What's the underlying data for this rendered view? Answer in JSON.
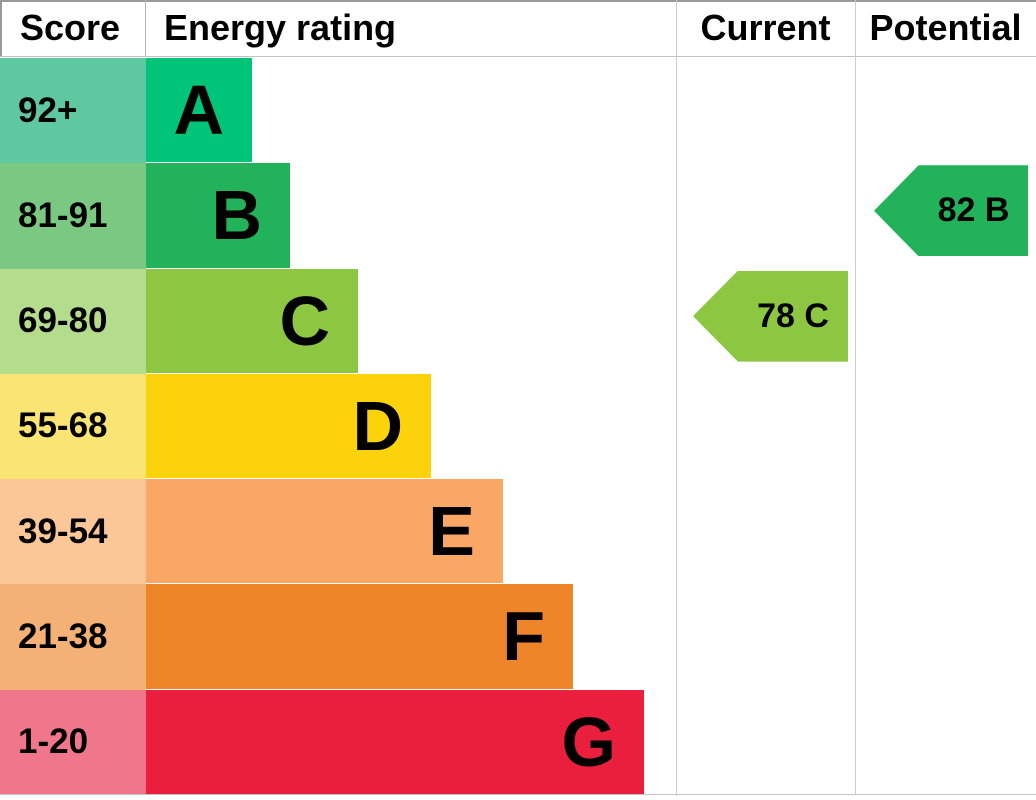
{
  "header": {
    "score": "Score",
    "energy_rating": "Energy rating",
    "current": "Current",
    "potential": "Potential"
  },
  "chart_data": {
    "type": "bar",
    "kind": "epc-energy-rating",
    "columns": [
      "Score",
      "Energy rating",
      "Current",
      "Potential"
    ],
    "bands": [
      {
        "letter": "A",
        "score_range": "92+",
        "bar_color": "#00c477",
        "score_tint_color": "#5fc8a1",
        "bar_width_frac": 0.2
      },
      {
        "letter": "B",
        "score_range": "81-91",
        "bar_color": "#22b259",
        "score_tint_color": "#7ac881",
        "bar_width_frac": 0.272
      },
      {
        "letter": "C",
        "score_range": "69-80",
        "bar_color": "#8dc742",
        "score_tint_color": "#b4dc8d",
        "bar_width_frac": 0.4
      },
      {
        "letter": "D",
        "score_range": "55-68",
        "bar_color": "#fcd20b",
        "score_tint_color": "#fae473",
        "bar_width_frac": 0.538
      },
      {
        "letter": "E",
        "score_range": "39-54",
        "bar_color": "#faa766",
        "score_tint_color": "#fcc796",
        "bar_width_frac": 0.674
      },
      {
        "letter": "F",
        "score_range": "21-38",
        "bar_color": "#ee8528",
        "score_tint_color": "#f3b176",
        "bar_width_frac": 0.806
      },
      {
        "letter": "G",
        "score_range": "1-20",
        "bar_color": "#ea1e3d",
        "score_tint_color": "#f0768b",
        "bar_width_frac": 0.94
      }
    ],
    "current": {
      "label": "78 C",
      "value": 78,
      "band": "C",
      "band_index": 2,
      "color": "#8dc742"
    },
    "potential": {
      "label": "82 B",
      "value": 82,
      "band": "B",
      "band_index": 1,
      "color": "#22b259"
    }
  }
}
